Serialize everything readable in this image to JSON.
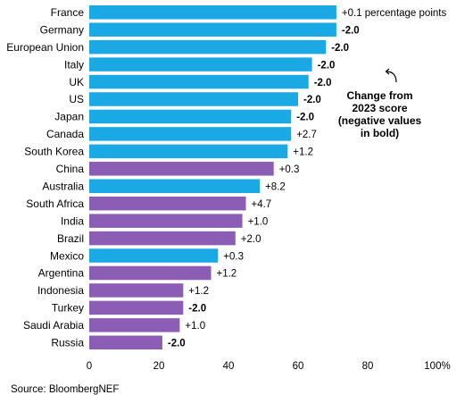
{
  "chart_data": {
    "type": "bar",
    "orientation": "horizontal",
    "categories": [
      "France",
      "Germany",
      "European Union",
      "Italy",
      "UK",
      "US",
      "Japan",
      "Canada",
      "South Korea",
      "China",
      "Australia",
      "South Africa",
      "India",
      "Brazil",
      "Mexico",
      "Argentina",
      "Indonesia",
      "Turkey",
      "Saudi Arabia",
      "Russia"
    ],
    "values": [
      71,
      71,
      68,
      64,
      63,
      60,
      58,
      58,
      57,
      53,
      49,
      45,
      44,
      42,
      37,
      35,
      27,
      27,
      26,
      21
    ],
    "change_labels": [
      "+0.1 percentage points",
      "-2.0",
      "-2.0",
      "-2.0",
      "-2.0",
      "-2.0",
      "-2.0",
      "+2.7",
      "+1.2",
      "+0.3",
      "+8.2",
      "+4.7",
      "+1.0",
      "+2.0",
      "+0.3",
      "+1.2",
      "+1.2",
      "-2.0",
      "+1.0",
      "-2.0"
    ],
    "groups": [
      "blue",
      "blue",
      "blue",
      "blue",
      "blue",
      "blue",
      "blue",
      "blue",
      "blue",
      "purple",
      "blue",
      "purple",
      "purple",
      "purple",
      "blue",
      "purple",
      "purple",
      "purple",
      "purple",
      "purple"
    ],
    "colors": {
      "blue": "#1aa9e4",
      "purple": "#8c5db5"
    },
    "x_ticks": [
      "0",
      "20",
      "40",
      "60",
      "80",
      "100%"
    ],
    "x_tick_values": [
      0,
      20,
      40,
      60,
      80,
      100
    ],
    "xlim": [
      0,
      100
    ],
    "grid": false,
    "annotation": "Change from 2023 score (negative values in bold)",
    "source": "Source: BloombergNEF"
  }
}
